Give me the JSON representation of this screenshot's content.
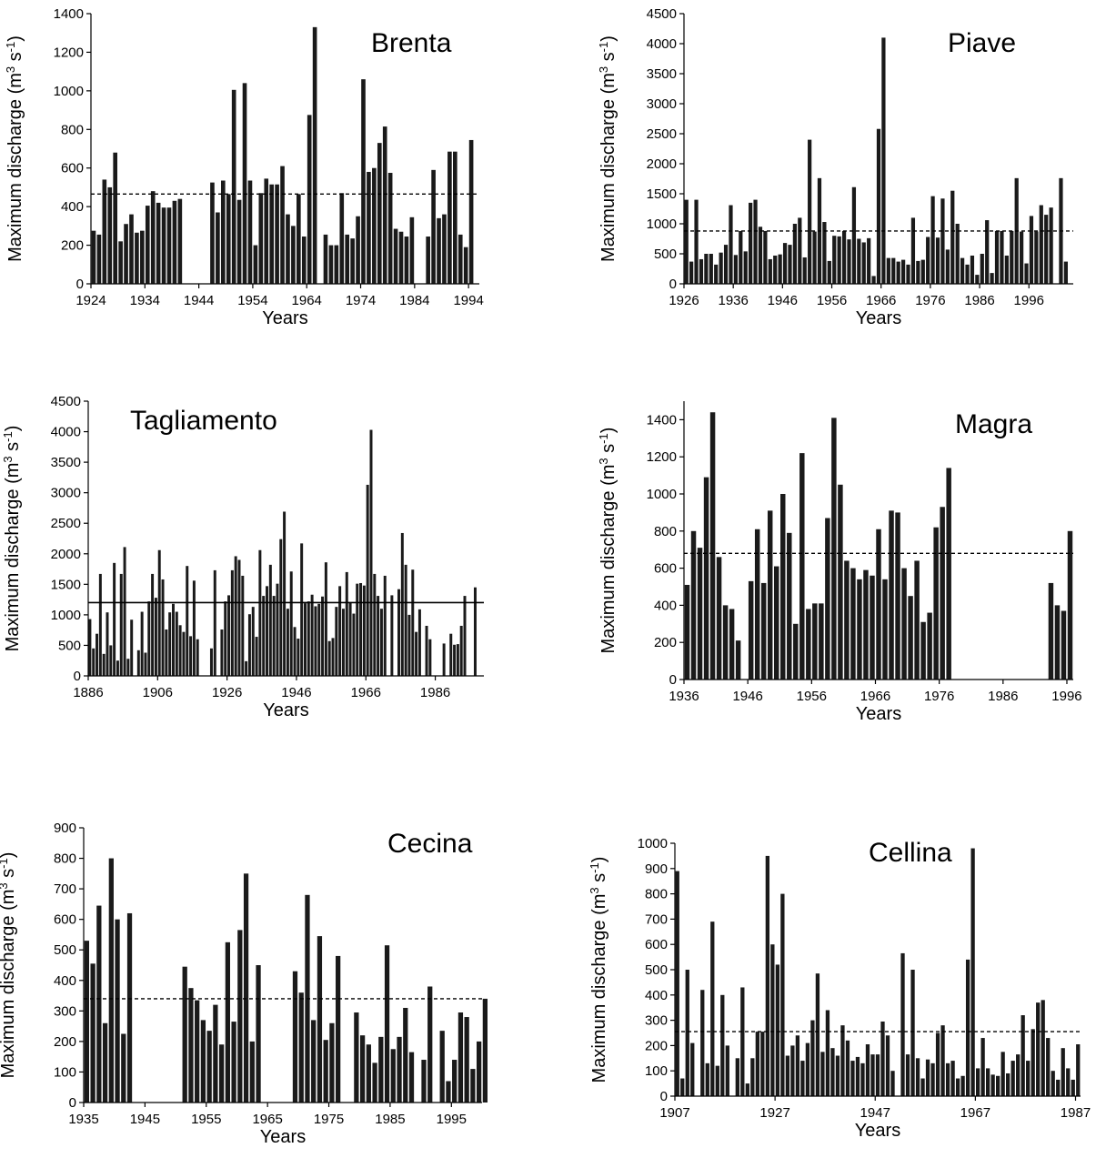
{
  "chart_data": [
    {
      "type": "bar",
      "title": "Brenta",
      "xlabel": "Years",
      "ylabel": "Maximum discharge (m3 s-1)",
      "ylabel_sup1": "3",
      "ylabel_mid": " s",
      "ylabel_sup2": "-1",
      "ylim": [
        0,
        1400
      ],
      "yticks": [
        0,
        200,
        400,
        600,
        800,
        1000,
        1200,
        1400
      ],
      "xrange": [
        1924,
        1996
      ],
      "xticks": [
        1924,
        1934,
        1944,
        1954,
        1964,
        1974,
        1984,
        1994
      ],
      "mean_line": {
        "value": 465,
        "style": "dashed"
      },
      "years": [
        1924,
        1925,
        1926,
        1927,
        1928,
        1929,
        1930,
        1931,
        1932,
        1933,
        1934,
        1935,
        1936,
        1937,
        1938,
        1939,
        1940,
        1946,
        1947,
        1948,
        1949,
        1950,
        1951,
        1952,
        1953,
        1954,
        1955,
        1956,
        1957,
        1958,
        1959,
        1960,
        1961,
        1962,
        1963,
        1964,
        1965,
        1967,
        1968,
        1969,
        1970,
        1971,
        1972,
        1973,
        1974,
        1975,
        1976,
        1977,
        1978,
        1979,
        1980,
        1981,
        1982,
        1983,
        1986,
        1987,
        1988,
        1989,
        1990,
        1991,
        1992,
        1993,
        1994,
        1995
      ],
      "values": [
        275,
        255,
        540,
        500,
        680,
        220,
        310,
        360,
        265,
        275,
        405,
        480,
        420,
        395,
        395,
        430,
        440,
        525,
        370,
        535,
        465,
        1005,
        435,
        1040,
        535,
        200,
        470,
        545,
        515,
        515,
        610,
        360,
        300,
        465,
        245,
        875,
        1330,
        255,
        200,
        200,
        470,
        255,
        235,
        350,
        1060,
        580,
        600,
        730,
        815,
        575,
        285,
        270,
        245,
        345,
        245,
        590,
        340,
        360,
        685,
        685,
        255,
        190,
        745,
        0
      ],
      "values_note": "bar heights aligned with years"
    },
    {
      "type": "bar",
      "title": "Piave",
      "xlabel": "Years",
      "ylabel": "Maximum discharge (m3 s-1)",
      "ylabel_sup1": "3",
      "ylabel_mid": " s",
      "ylabel_sup2": "-1",
      "ylim": [
        0,
        4500
      ],
      "yticks": [
        0,
        500,
        1000,
        1500,
        2000,
        2500,
        3000,
        3500,
        4000,
        4500
      ],
      "xrange": [
        1926,
        2005
      ],
      "xticks": [
        1926,
        1936,
        1946,
        1956,
        1966,
        1976,
        1986,
        1996
      ],
      "mean_line": {
        "value": 880,
        "style": "dashed"
      },
      "years": [
        1926,
        1927,
        1928,
        1929,
        1930,
        1931,
        1932,
        1933,
        1934,
        1935,
        1936,
        1937,
        1938,
        1939,
        1940,
        1941,
        1942,
        1943,
        1944,
        1945,
        1946,
        1947,
        1948,
        1949,
        1950,
        1951,
        1952,
        1953,
        1954,
        1955,
        1956,
        1957,
        1958,
        1959,
        1960,
        1961,
        1962,
        1963,
        1964,
        1965,
        1966,
        1967,
        1968,
        1969,
        1970,
        1971,
        1972,
        1973,
        1974,
        1975,
        1976,
        1977,
        1978,
        1979,
        1980,
        1981,
        1982,
        1983,
        1984,
        1985,
        1986,
        1987,
        1988,
        1989,
        1990,
        1991,
        1992,
        1993,
        1994,
        1995,
        1996,
        1997,
        1998,
        1999,
        2000,
        2001,
        2002,
        2003
      ],
      "values": [
        1400,
        370,
        1400,
        410,
        500,
        500,
        320,
        520,
        650,
        1310,
        480,
        880,
        540,
        1350,
        1400,
        950,
        880,
        410,
        470,
        490,
        680,
        650,
        1000,
        1100,
        440,
        2400,
        870,
        1760,
        1030,
        380,
        800,
        790,
        880,
        740,
        1610,
        750,
        690,
        760,
        130,
        2580,
        4100,
        430,
        430,
        370,
        400,
        320,
        1100,
        380,
        400,
        780,
        1460,
        770,
        1420,
        570,
        1550,
        1000,
        430,
        320,
        470,
        150,
        500,
        1060,
        180,
        880,
        880,
        470,
        880,
        1760,
        870,
        340,
        1130,
        870,
        1310,
        1150,
        1270,
        0,
        1760,
        370
      ],
      "values_note": "bar heights aligned with years"
    },
    {
      "type": "bar",
      "title": "Tagliamento",
      "xlabel": "Years",
      "ylabel": "Maximum discharge (m3 s-1)",
      "ylabel_sup1": "3",
      "ylabel_mid": " s",
      "ylabel_sup2": "-1",
      "ylim": [
        0,
        4500
      ],
      "yticks": [
        0,
        500,
        1000,
        1500,
        2000,
        2500,
        3000,
        3500,
        4000,
        4500
      ],
      "xrange": [
        1886,
        2000
      ],
      "xticks": [
        1886,
        1906,
        1926,
        1946,
        1966,
        1986
      ],
      "mean_line": {
        "value": 1200,
        "style": "solid"
      },
      "years": [
        1886,
        1887,
        1888,
        1889,
        1890,
        1891,
        1892,
        1893,
        1894,
        1895,
        1896,
        1897,
        1898,
        1899,
        1900,
        1901,
        1902,
        1903,
        1904,
        1905,
        1906,
        1907,
        1908,
        1909,
        1910,
        1911,
        1912,
        1913,
        1914,
        1915,
        1916,
        1917,
        1918,
        1921,
        1922,
        1923,
        1924,
        1925,
        1926,
        1927,
        1928,
        1929,
        1930,
        1931,
        1932,
        1933,
        1934,
        1935,
        1936,
        1937,
        1938,
        1939,
        1940,
        1941,
        1942,
        1943,
        1944,
        1945,
        1946,
        1947,
        1948,
        1949,
        1950,
        1951,
        1952,
        1953,
        1954,
        1955,
        1956,
        1957,
        1958,
        1959,
        1960,
        1961,
        1962,
        1963,
        1964,
        1965,
        1966,
        1967,
        1968,
        1969,
        1970,
        1971,
        1972,
        1973,
        1974,
        1975,
        1976,
        1977,
        1978,
        1979,
        1980,
        1981,
        1982,
        1983,
        1984,
        1985,
        1986,
        1987,
        1988,
        1989,
        1990,
        1991,
        1992,
        1993,
        1994,
        1995,
        1996,
        1997,
        1998,
        1999,
        2000
      ],
      "values": [
        930,
        450,
        690,
        1670,
        360,
        1040,
        500,
        1850,
        250,
        1670,
        2110,
        280,
        920,
        0,
        420,
        1050,
        380,
        1220,
        1670,
        1280,
        2060,
        1580,
        760,
        1040,
        1180,
        1050,
        830,
        720,
        1800,
        650,
        1560,
        600,
        0,
        450,
        1730,
        0,
        760,
        1220,
        1320,
        1730,
        1960,
        1900,
        1640,
        240,
        1010,
        1130,
        640,
        2060,
        1310,
        1470,
        1820,
        1310,
        1510,
        2240,
        2690,
        1100,
        1710,
        800,
        610,
        2170,
        1190,
        1220,
        1330,
        1140,
        1180,
        1300,
        1860,
        570,
        620,
        1130,
        1470,
        1100,
        1700,
        1200,
        1020,
        1510,
        1520,
        1480,
        3130,
        4030,
        1670,
        1310,
        1100,
        1640,
        0,
        1320,
        0,
        1420,
        2340,
        1820,
        1000,
        1740,
        720,
        1090,
        0,
        820,
        600,
        0,
        0,
        0,
        530,
        0,
        690,
        510,
        520,
        820,
        1310,
        0,
        0,
        1450,
        0,
        0,
        0
      ],
      "values_note": "bar heights aligned with years"
    },
    {
      "type": "bar",
      "title": "Magra",
      "xlabel": "Years",
      "ylabel": "Maximum discharge (m3 s-1)",
      "ylabel_sup1": "3",
      "ylabel_mid": " s",
      "ylabel_sup2": "-1",
      "ylim": [
        0,
        1500
      ],
      "yticks": [
        0,
        200,
        400,
        600,
        800,
        1000,
        1200,
        1400
      ],
      "xrange": [
        1936,
        1997
      ],
      "xticks": [
        1936,
        1946,
        1956,
        1966,
        1976,
        1986,
        1996
      ],
      "mean_line": {
        "value": 680,
        "style": "dashed"
      },
      "years": [
        1936,
        1937,
        1938,
        1939,
        1940,
        1941,
        1942,
        1943,
        1944,
        1946,
        1947,
        1948,
        1949,
        1950,
        1951,
        1952,
        1953,
        1954,
        1955,
        1956,
        1957,
        1958,
        1959,
        1960,
        1961,
        1962,
        1963,
        1964,
        1965,
        1966,
        1967,
        1968,
        1969,
        1970,
        1971,
        1972,
        1973,
        1974,
        1975,
        1976,
        1977,
        1993,
        1994,
        1995,
        1996
      ],
      "values": [
        510,
        800,
        710,
        1090,
        1440,
        660,
        400,
        380,
        210,
        530,
        810,
        520,
        910,
        610,
        1000,
        790,
        300,
        1220,
        380,
        410,
        410,
        870,
        1410,
        1050,
        640,
        600,
        540,
        590,
        560,
        810,
        540,
        910,
        900,
        600,
        450,
        640,
        310,
        360,
        820,
        930,
        1140,
        520,
        400,
        370,
        800
      ],
      "values_note": "bar heights aligned with years"
    },
    {
      "type": "bar",
      "title": "Cecina",
      "xlabel": "Years",
      "ylabel": "Maximum discharge (m3 s-1)",
      "ylabel_sup1": "3",
      "ylabel_mid": " s",
      "ylabel_sup2": "-1",
      "ylim": [
        0,
        900
      ],
      "yticks": [
        0,
        100,
        200,
        300,
        400,
        500,
        600,
        700,
        800,
        900
      ],
      "xrange": [
        1935,
        2000
      ],
      "xticks": [
        1935,
        1945,
        1955,
        1965,
        1975,
        1985,
        1995
      ],
      "mean_line": {
        "value": 340,
        "style": "dashed"
      },
      "years": [
        1935,
        1936,
        1937,
        1938,
        1939,
        1940,
        1941,
        1942,
        1951,
        1952,
        1953,
        1954,
        1955,
        1956,
        1957,
        1958,
        1959,
        1960,
        1961,
        1962,
        1963,
        1969,
        1970,
        1971,
        1972,
        1973,
        1974,
        1975,
        1976,
        1979,
        1980,
        1981,
        1982,
        1983,
        1984,
        1985,
        1986,
        1987,
        1988,
        1990,
        1991,
        1993,
        1994,
        1995,
        1996,
        1997,
        1998,
        1999,
        2000
      ],
      "values": [
        530,
        455,
        645,
        260,
        800,
        600,
        225,
        620,
        445,
        375,
        335,
        270,
        235,
        320,
        190,
        525,
        265,
        565,
        750,
        200,
        450,
        430,
        360,
        680,
        270,
        545,
        205,
        260,
        480,
        295,
        220,
        190,
        130,
        215,
        515,
        175,
        215,
        310,
        165,
        140,
        380,
        235,
        70,
        140,
        295,
        280,
        110,
        200,
        340
      ],
      "values_note": "bar heights aligned with years"
    },
    {
      "type": "bar",
      "title": "Cellina",
      "xlabel": "Years",
      "ylabel": "Maximum discharge (m3 s-1)",
      "ylabel_sup1": "3",
      "ylabel_mid": " s",
      "ylabel_sup2": "-1",
      "ylim": [
        0,
        1000
      ],
      "yticks": [
        0,
        100,
        200,
        300,
        400,
        500,
        600,
        700,
        800,
        900,
        1000
      ],
      "xrange": [
        1907,
        1988
      ],
      "xticks": [
        1907,
        1927,
        1947,
        1967,
        1987
      ],
      "mean_line": {
        "value": 255,
        "style": "dashed"
      },
      "years": [
        1907,
        1908,
        1909,
        1910,
        1912,
        1913,
        1914,
        1915,
        1916,
        1917,
        1919,
        1920,
        1921,
        1922,
        1923,
        1924,
        1925,
        1926,
        1927,
        1928,
        1929,
        1930,
        1931,
        1932,
        1933,
        1934,
        1935,
        1936,
        1937,
        1938,
        1939,
        1940,
        1941,
        1942,
        1943,
        1944,
        1945,
        1946,
        1947,
        1948,
        1949,
        1950,
        1952,
        1953,
        1954,
        1955,
        1956,
        1957,
        1958,
        1959,
        1960,
        1961,
        1962,
        1963,
        1964,
        1965,
        1966,
        1967,
        1968,
        1969,
        1970,
        1971,
        1972,
        1973,
        1974,
        1975,
        1976,
        1977,
        1978,
        1979,
        1980,
        1981,
        1982,
        1983,
        1984,
        1985,
        1986,
        1987
      ],
      "values": [
        890,
        70,
        500,
        210,
        420,
        130,
        690,
        120,
        400,
        200,
        150,
        430,
        50,
        150,
        255,
        255,
        950,
        600,
        520,
        800,
        160,
        200,
        240,
        140,
        210,
        300,
        485,
        175,
        340,
        190,
        160,
        280,
        220,
        140,
        155,
        130,
        205,
        165,
        165,
        295,
        240,
        100,
        565,
        165,
        500,
        150,
        70,
        145,
        130,
        250,
        280,
        130,
        140,
        70,
        80,
        540,
        980,
        110,
        230,
        110,
        85,
        80,
        175,
        90,
        140,
        165,
        320,
        140,
        265,
        370,
        380,
        230,
        100,
        65,
        190,
        110,
        65,
        205
      ],
      "values_note": "bar heights aligned with years"
    }
  ]
}
